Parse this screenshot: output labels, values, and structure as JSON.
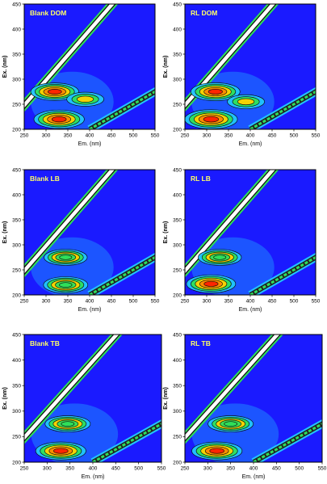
{
  "colors": {
    "background": "#1a1aff",
    "ridge": "#ffffff",
    "hot": "#ff2000",
    "warm": "#ffd200",
    "mid": "#2fe05a",
    "cool": "#21c7ff",
    "contour": "#0a0a0a",
    "panel_label": "#ffff66"
  },
  "panels": [
    {
      "label": "Blank DOM",
      "ylabel": "Ex. (nm)",
      "xlabel": "Em. (nm)",
      "xticks": [
        "250",
        "300",
        "350",
        "400",
        "450",
        "500",
        "550"
      ],
      "yticks": [
        "200",
        "250",
        "300",
        "350",
        "400",
        "450"
      ]
    },
    {
      "label": "RL DOM",
      "ylabel": "Ex. (nm)",
      "xlabel": "Em. (nm)",
      "xticks": [
        "250",
        "300",
        "350",
        "400",
        "450",
        "500",
        "550"
      ],
      "yticks": [
        "200",
        "250",
        "300",
        "350",
        "400",
        "450"
      ]
    },
    {
      "label": "Blank LB",
      "ylabel": "Ex. (nm)",
      "xlabel": "Em. (nm)",
      "xticks": [
        "250",
        "300",
        "350",
        "400",
        "450",
        "500",
        "550"
      ],
      "yticks": [
        "200",
        "250",
        "300",
        "350",
        "400",
        "450"
      ]
    },
    {
      "label": "RL LB",
      "ylabel": "Ex. (nm)",
      "xlabel": "Em. (nm)",
      "xticks": [
        "250",
        "300",
        "350",
        "400",
        "450",
        "500",
        "550"
      ],
      "yticks": [
        "200",
        "250",
        "300",
        "350",
        "400",
        "450"
      ]
    },
    {
      "label": "Blank TB",
      "ylabel": "Ex. (nm)",
      "xlabel": "Em. (nm)",
      "xticks": [
        "250",
        "300",
        "350",
        "400",
        "450",
        "500",
        "550"
      ],
      "yticks": [
        "200",
        "250",
        "300",
        "350",
        "400",
        "450"
      ]
    },
    {
      "label": "RL TB",
      "ylabel": "Ex. (nm)",
      "xlabel": "Em. (nm)",
      "xticks": [
        "250",
        "300",
        "350",
        "400",
        "450",
        "500",
        "550"
      ],
      "yticks": [
        "200",
        "250",
        "300",
        "350",
        "400",
        "450"
      ]
    }
  ],
  "chart_data": [
    {
      "type": "heatmap",
      "title": "Blank DOM",
      "xlabel": "Em. (nm)",
      "ylabel": "Ex. (nm)",
      "xlim": [
        250,
        550
      ],
      "ylim": [
        200,
        450
      ],
      "peaks": [
        {
          "em": 320,
          "ex": 275,
          "intensity": 0.8
        },
        {
          "em": 330,
          "ex": 220,
          "intensity": 0.9
        },
        {
          "em": 390,
          "ex": 260,
          "intensity": 0.35
        }
      ]
    },
    {
      "type": "heatmap",
      "title": "RL DOM",
      "xlabel": "Em. (nm)",
      "ylabel": "Ex. (nm)",
      "xlim": [
        250,
        550
      ],
      "ylim": [
        200,
        450
      ],
      "peaks": [
        {
          "em": 320,
          "ex": 275,
          "intensity": 0.85
        },
        {
          "em": 310,
          "ex": 220,
          "intensity": 1.0
        },
        {
          "em": 390,
          "ex": 255,
          "intensity": 0.35
        }
      ]
    },
    {
      "type": "heatmap",
      "title": "Blank LB",
      "xlabel": "Em. (nm)",
      "ylabel": "Ex. (nm)",
      "xlim": [
        250,
        550
      ],
      "ylim": [
        200,
        450
      ],
      "peaks": [
        {
          "em": 345,
          "ex": 275,
          "intensity": 0.6
        },
        {
          "em": 345,
          "ex": 220,
          "intensity": 0.65
        }
      ]
    },
    {
      "type": "heatmap",
      "title": "RL LB",
      "xlabel": "Em. (nm)",
      "ylabel": "Ex. (nm)",
      "xlim": [
        250,
        550
      ],
      "ylim": [
        200,
        450
      ],
      "peaks": [
        {
          "em": 330,
          "ex": 275,
          "intensity": 0.6
        },
        {
          "em": 310,
          "ex": 222,
          "intensity": 0.85
        }
      ]
    },
    {
      "type": "heatmap",
      "title": "Blank TB",
      "xlabel": "Em. (nm)",
      "ylabel": "Ex. (nm)",
      "xlim": [
        250,
        550
      ],
      "ylim": [
        200,
        450
      ],
      "peaks": [
        {
          "em": 345,
          "ex": 275,
          "intensity": 0.6
        },
        {
          "em": 330,
          "ex": 222,
          "intensity": 0.8
        }
      ]
    },
    {
      "type": "heatmap",
      "title": "RL TB",
      "xlabel": "Em. (nm)",
      "ylabel": "Ex. (nm)",
      "xlim": [
        250,
        550
      ],
      "ylim": [
        200,
        450
      ],
      "peaks": [
        {
          "em": 350,
          "ex": 275,
          "intensity": 0.6
        },
        {
          "em": 320,
          "ex": 222,
          "intensity": 0.8
        }
      ]
    }
  ]
}
